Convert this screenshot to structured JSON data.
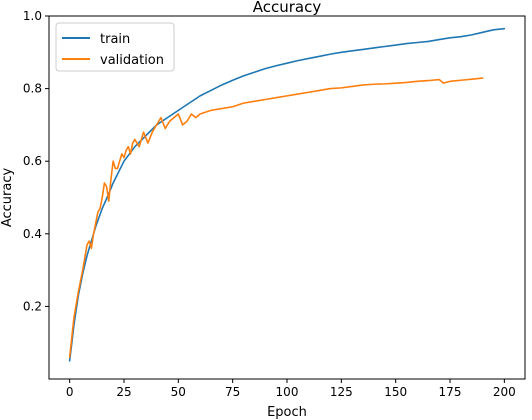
{
  "chart_data": {
    "type": "line",
    "title": "Accuracy",
    "xlabel": "Epoch",
    "ylabel": "Accuracy",
    "xlim": [
      -9.5,
      209.5
    ],
    "ylim": [
      0.0,
      1.0
    ],
    "x_ticks": [
      0,
      25,
      50,
      75,
      100,
      125,
      150,
      175,
      200
    ],
    "y_ticks": [
      0.2,
      0.4,
      0.6,
      0.8,
      1.0
    ],
    "grid": false,
    "legend_position": "top-left",
    "series": [
      {
        "name": "train",
        "color": "#1f77b4",
        "x": [
          0,
          2,
          4,
          6,
          8,
          10,
          12,
          15,
          18,
          20,
          25,
          30,
          35,
          40,
          45,
          50,
          55,
          60,
          65,
          70,
          75,
          80,
          85,
          90,
          95,
          100,
          105,
          110,
          115,
          120,
          125,
          130,
          135,
          140,
          145,
          150,
          155,
          160,
          165,
          170,
          175,
          180,
          185,
          190,
          195,
          200
        ],
        "y": [
          0.05,
          0.15,
          0.23,
          0.29,
          0.34,
          0.38,
          0.42,
          0.47,
          0.51,
          0.54,
          0.6,
          0.64,
          0.67,
          0.7,
          0.72,
          0.74,
          0.76,
          0.78,
          0.795,
          0.81,
          0.823,
          0.835,
          0.845,
          0.855,
          0.863,
          0.87,
          0.877,
          0.883,
          0.889,
          0.895,
          0.9,
          0.904,
          0.908,
          0.912,
          0.916,
          0.92,
          0.924,
          0.927,
          0.93,
          0.935,
          0.94,
          0.943,
          0.948,
          0.955,
          0.962,
          0.965
        ]
      },
      {
        "name": "validation",
        "color": "#ff7f0e",
        "x": [
          0,
          2,
          4,
          6,
          8,
          9,
          10,
          11,
          12,
          13,
          14,
          15,
          16,
          17,
          18,
          19,
          20,
          21,
          22,
          23,
          24,
          25,
          26,
          27,
          28,
          29,
          30,
          32,
          34,
          36,
          38,
          40,
          42,
          44,
          46,
          48,
          50,
          52,
          54,
          56,
          58,
          60,
          65,
          70,
          75,
          80,
          85,
          90,
          95,
          100,
          105,
          110,
          115,
          120,
          125,
          130,
          135,
          140,
          145,
          150,
          155,
          160,
          165,
          170,
          172,
          175,
          180,
          185,
          190
        ],
        "y": [
          0.06,
          0.17,
          0.24,
          0.3,
          0.37,
          0.38,
          0.36,
          0.4,
          0.43,
          0.46,
          0.47,
          0.5,
          0.54,
          0.53,
          0.49,
          0.55,
          0.6,
          0.58,
          0.58,
          0.6,
          0.62,
          0.61,
          0.63,
          0.64,
          0.62,
          0.65,
          0.66,
          0.64,
          0.68,
          0.65,
          0.68,
          0.7,
          0.72,
          0.69,
          0.71,
          0.72,
          0.73,
          0.7,
          0.71,
          0.73,
          0.72,
          0.73,
          0.74,
          0.745,
          0.75,
          0.76,
          0.765,
          0.77,
          0.775,
          0.78,
          0.785,
          0.79,
          0.795,
          0.8,
          0.802,
          0.806,
          0.81,
          0.812,
          0.813,
          0.815,
          0.817,
          0.82,
          0.822,
          0.825,
          0.815,
          0.82,
          0.823,
          0.826,
          0.829
        ]
      }
    ]
  }
}
